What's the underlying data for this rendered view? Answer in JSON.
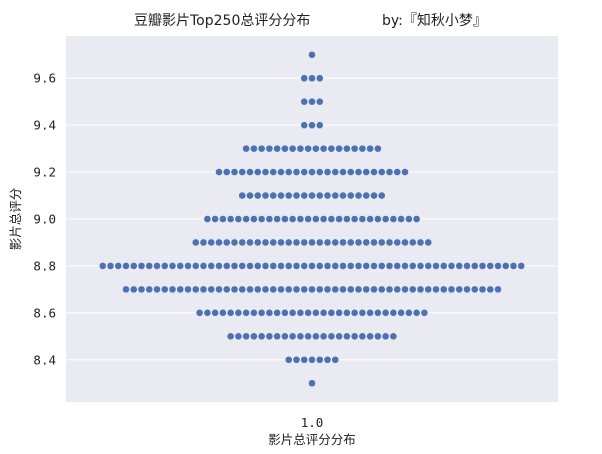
{
  "chart_data": {
    "type": "scatter",
    "subtype": "swarm",
    "title": "豆瓣影片Top250总评分分布",
    "subtitle": "by:『知秋小梦』",
    "xlabel": "影片总评分分布",
    "ylabel": "影片总评分",
    "x_tick_labels": [
      "1.0"
    ],
    "y_tick_labels": [
      "8.4",
      "8.6",
      "8.8",
      "9.0",
      "9.2",
      "9.4",
      "9.6"
    ],
    "y_ticks": [
      8.4,
      8.6,
      8.8,
      9.0,
      9.2,
      9.4,
      9.6
    ],
    "ylim": [
      8.22,
      9.78
    ],
    "grid": true,
    "series": [
      {
        "x_category": "1.0",
        "color": "#4c72b0",
        "score_counts": [
          {
            "score": 8.3,
            "count": 1
          },
          {
            "score": 8.4,
            "count": 7
          },
          {
            "score": 8.5,
            "count": 22
          },
          {
            "score": 8.6,
            "count": 30
          },
          {
            "score": 8.7,
            "count": 49
          },
          {
            "score": 8.8,
            "count": 55
          },
          {
            "score": 8.9,
            "count": 31
          },
          {
            "score": 9.0,
            "count": 28
          },
          {
            "score": 9.1,
            "count": 19
          },
          {
            "score": 9.2,
            "count": 25
          },
          {
            "score": 9.3,
            "count": 18
          },
          {
            "score": 9.4,
            "count": 3
          },
          {
            "score": 9.5,
            "count": 3
          },
          {
            "score": 9.6,
            "count": 3
          },
          {
            "score": 9.7,
            "count": 1
          }
        ]
      }
    ],
    "background_color": "#eaeaf2",
    "grid_color": "#ffffff"
  }
}
